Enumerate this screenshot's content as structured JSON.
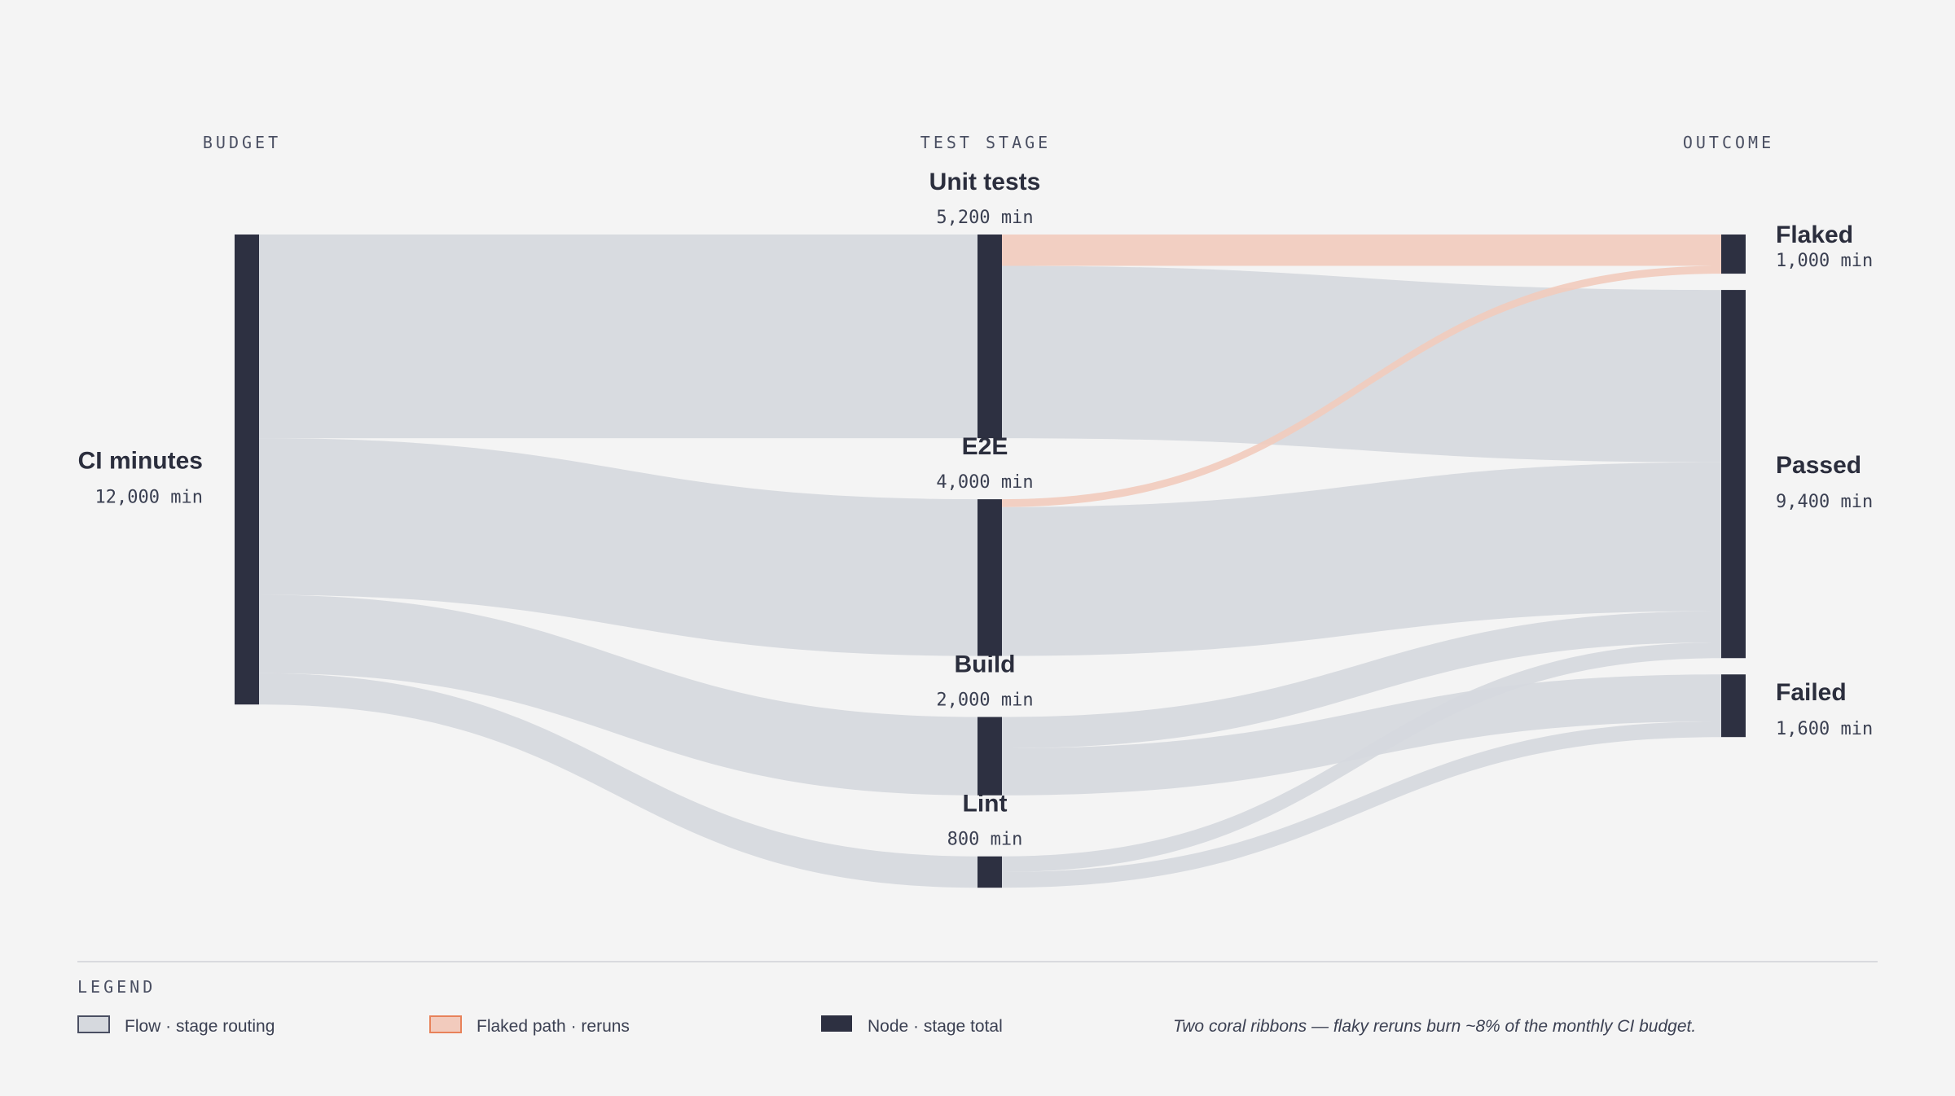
{
  "chart_data": {
    "type": "sankey",
    "units": "min",
    "columns": [
      "BUDGET",
      "TEST STAGE",
      "OUTCOME"
    ],
    "nodes": [
      {
        "id": "ci",
        "name": "CI minutes",
        "value_label": "12,000 min",
        "value": 12000,
        "column": 0
      },
      {
        "id": "unit",
        "name": "Unit tests",
        "value_label": "5,200 min",
        "value": 5200,
        "column": 1
      },
      {
        "id": "e2e",
        "name": "E2E",
        "value_label": "4,000 min",
        "value": 4000,
        "column": 1
      },
      {
        "id": "build",
        "name": "Build",
        "value_label": "2,000 min",
        "value": 2000,
        "column": 1
      },
      {
        "id": "lint",
        "name": "Lint",
        "value_label": "800 min",
        "value": 800,
        "column": 1
      },
      {
        "id": "flaked",
        "name": "Flaked",
        "value_label": "1,000 min",
        "value": 1000,
        "column": 2
      },
      {
        "id": "passed",
        "name": "Passed",
        "value_label": "9,400 min",
        "value": 9400,
        "column": 2
      },
      {
        "id": "failed",
        "name": "Failed",
        "value_label": "1,600 min",
        "value": 1600,
        "column": 2
      }
    ],
    "links": [
      {
        "source": "ci",
        "target": "unit",
        "value": 5200,
        "kind": "flow"
      },
      {
        "source": "ci",
        "target": "e2e",
        "value": 4000,
        "kind": "flow"
      },
      {
        "source": "ci",
        "target": "build",
        "value": 2000,
        "kind": "flow"
      },
      {
        "source": "ci",
        "target": "lint",
        "value": 800,
        "kind": "flow"
      },
      {
        "source": "unit",
        "target": "flaked",
        "value": 800,
        "kind": "flaked"
      },
      {
        "source": "unit",
        "target": "passed",
        "value": 4400,
        "kind": "flow"
      },
      {
        "source": "e2e",
        "target": "flaked",
        "value": 200,
        "kind": "flaked"
      },
      {
        "source": "e2e",
        "target": "passed",
        "value": 3800,
        "kind": "flow"
      },
      {
        "source": "build",
        "target": "passed",
        "value": 800,
        "kind": "flow"
      },
      {
        "source": "build",
        "target": "failed",
        "value": 1200,
        "kind": "flow"
      },
      {
        "source": "lint",
        "target": "passed",
        "value": 400,
        "kind": "flow"
      },
      {
        "source": "lint",
        "target": "failed",
        "value": 400,
        "kind": "flow"
      }
    ],
    "colors": {
      "flow": "#d6d9de",
      "flaked": "#f2cbbd",
      "flaked_border": "#e8825a",
      "node": "#2d3041",
      "background": "#f4f4f4"
    }
  },
  "legend": {
    "title": "LEGEND",
    "items": [
      {
        "label": "Flow · stage routing",
        "swatch": "flow"
      },
      {
        "label": "Flaked path · reruns",
        "swatch": "flaked"
      },
      {
        "label": "Node · stage total",
        "swatch": "node"
      }
    ],
    "note": "Two coral ribbons — flaky reruns burn ~8% of the monthly CI budget."
  }
}
